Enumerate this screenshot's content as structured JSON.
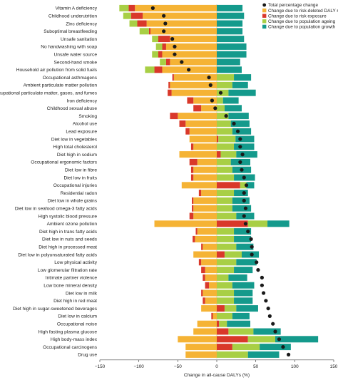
{
  "chart_data": {
    "type": "bar",
    "subtype": "horizontal-stacked-bar-with-dot",
    "xlabel": "Change in all-cause DALYs (%)",
    "xlim": [
      -150,
      150
    ],
    "xticks": [
      -150,
      -100,
      -50,
      0,
      50,
      100,
      150
    ],
    "legend": {
      "placement": "top-right",
      "items": [
        {
          "key": "total",
          "label": "Total percentage change",
          "marker": "dot",
          "color": "#1a1a1a"
        },
        {
          "key": "risk_deleted",
          "label": "Change due to risk-deleted DALY rate",
          "marker": "square",
          "color": "#f5b335"
        },
        {
          "key": "risk_exposure",
          "label": "Change due to risk exposure",
          "marker": "square",
          "color": "#d9382a"
        },
        {
          "key": "pop_ageing",
          "label": "Change due to population ageing",
          "marker": "square",
          "color": "#a8cf45"
        },
        {
          "key": "pop_growth",
          "label": "Change due to population growth",
          "marker": "square",
          "color": "#149a8c"
        }
      ]
    },
    "colors": {
      "risk_deleted": "#f5b335",
      "risk_exposure": "#d9382a",
      "pop_ageing": "#a8cf45",
      "pop_growth": "#149a8c",
      "total": "#1a1a1a"
    },
    "categories": [
      "Vitamin A deficiency",
      "Childhood underutrition",
      "Zinc deficiency",
      "Suboptimal breastfeeding",
      "Unsafe sanitation",
      "No handwashing with soap",
      "Unsafe water source",
      "Second-hand smoke",
      "Household air pollution from solid fuels",
      "Occupational asthmagens",
      "Ambient particulate matter pollution",
      "Occupational particulate matter, gases, and fumes",
      "Iron deficiency",
      "Childhood sexual abuse",
      "Smoking",
      "Alcohol use",
      "Lead exposure",
      "Diet low in vegetables",
      "High total cholesterol",
      "Diet high in sodium",
      "Occupational ergonomic factors",
      "Diet low in fibre",
      "Diet low in fruits",
      "Occupational injuries",
      "Residential radon",
      "Diet low in whole grains",
      "Diet low in seafood omega-3 fatty acids",
      "High systolic blood pressure",
      "Ambient ozone pollution",
      "Diet high in trans fatty acids",
      "Diet low in nuts and seeds",
      "Diet high in processed meat",
      "Diet low in polyunsaturated fatty acids",
      "Low physical activity",
      "Low glomerular filtration rate",
      "Intimate partner violence",
      "Low bone mineral density",
      "Diet low in milk",
      "Diet high in red meat",
      "Diet high in sugar-sweetened beverages",
      "Diet low in calcium",
      "Occupational noise",
      "High fasting plasma glucose",
      "High body-mass index",
      "Occupational carcinogens",
      "Drug use"
    ],
    "series": [
      {
        "key": "risk_deleted",
        "name": "Change due to risk-deleted DALY rate",
        "values": [
          -105,
          -95,
          -90,
          -85,
          -60,
          -65,
          -70,
          -60,
          -70,
          -55,
          -60,
          -58,
          -30,
          -20,
          -50,
          -40,
          -35,
          -35,
          -30,
          -48,
          -25,
          -30,
          -30,
          -45,
          -20,
          -30,
          -30,
          -30,
          -80,
          -25,
          -28,
          -18,
          -30,
          -20,
          -15,
          -15,
          -10,
          -18,
          -15,
          -20,
          -5,
          -25,
          -30,
          -50,
          -40,
          -40
        ]
      },
      {
        "key": "risk_exposure",
        "name": "Change due to risk exposure",
        "values": [
          -8,
          -15,
          -12,
          -2,
          -15,
          -5,
          -5,
          -5,
          -10,
          -2,
          -2,
          -5,
          -8,
          -10,
          -10,
          -8,
          -5,
          2,
          -3,
          5,
          -10,
          -3,
          -3,
          30,
          -3,
          -2,
          -2,
          -5,
          40,
          -2,
          -3,
          -2,
          10,
          -3,
          -5,
          -3,
          -5,
          -2,
          -3,
          10,
          -2,
          3,
          15,
          40,
          20,
          0
        ]
      },
      {
        "key": "pop_ageing",
        "name": "Change due to population ageing",
        "values": [
          -12,
          -10,
          -10,
          -12,
          -8,
          -8,
          -8,
          -8,
          -12,
          22,
          20,
          15,
          8,
          10,
          15,
          18,
          20,
          22,
          22,
          20,
          18,
          20,
          22,
          8,
          22,
          20,
          20,
          25,
          25,
          22,
          22,
          25,
          22,
          25,
          22,
          15,
          20,
          22,
          22,
          15,
          20,
          10,
          32,
          35,
          35,
          40
        ]
      },
      {
        "key": "pop_growth",
        "name": "Change due to population growth",
        "values": [
          33,
          35,
          33,
          33,
          35,
          38,
          38,
          30,
          32,
          22,
          20,
          35,
          20,
          22,
          26,
          24,
          24,
          24,
          26,
          27,
          25,
          24,
          27,
          10,
          18,
          22,
          24,
          23,
          28,
          22,
          22,
          22,
          22,
          26,
          24,
          24,
          28,
          24,
          24,
          28,
          22,
          30,
          35,
          55,
          40,
          40
        ]
      },
      {
        "key": "total",
        "name": "Total percentage change",
        "values": [
          -82,
          -68,
          -66,
          -68,
          -57,
          -54,
          -54,
          -45,
          -36,
          -10,
          -8,
          5,
          -6,
          -2,
          12,
          22,
          27,
          30,
          30,
          33,
          30,
          32,
          35,
          38,
          35,
          35,
          37,
          35,
          37,
          40,
          44,
          45,
          45,
          51,
          53,
          58,
          58,
          60,
          63,
          66,
          68,
          72,
          75,
          80,
          85,
          92
        ]
      }
    ]
  }
}
